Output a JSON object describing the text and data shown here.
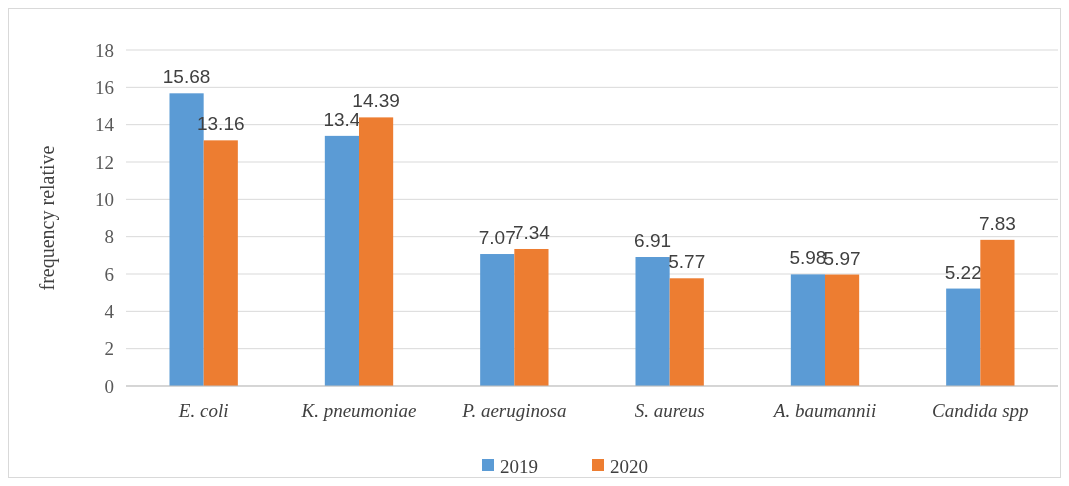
{
  "chart_data": {
    "type": "bar",
    "ylabel": "frequency relative",
    "categories": [
      "E. coli",
      "K. pneumoniae",
      "P. aeruginosa",
      "S. aureus",
      "A. baumannii",
      "Candida spp"
    ],
    "series": [
      {
        "name": "2019",
        "color": "#5b9bd5",
        "values": [
          15.68,
          13.4,
          7.07,
          6.91,
          5.98,
          5.22
        ]
      },
      {
        "name": "2020",
        "color": "#ed7d31",
        "values": [
          13.16,
          14.39,
          7.34,
          5.77,
          5.97,
          7.83
        ]
      }
    ],
    "ylim": [
      0,
      18
    ],
    "yticks": [
      0,
      2,
      4,
      6,
      8,
      10,
      12,
      14,
      16,
      18
    ],
    "grid": "y",
    "legend": "bottom",
    "data_labels": true
  }
}
